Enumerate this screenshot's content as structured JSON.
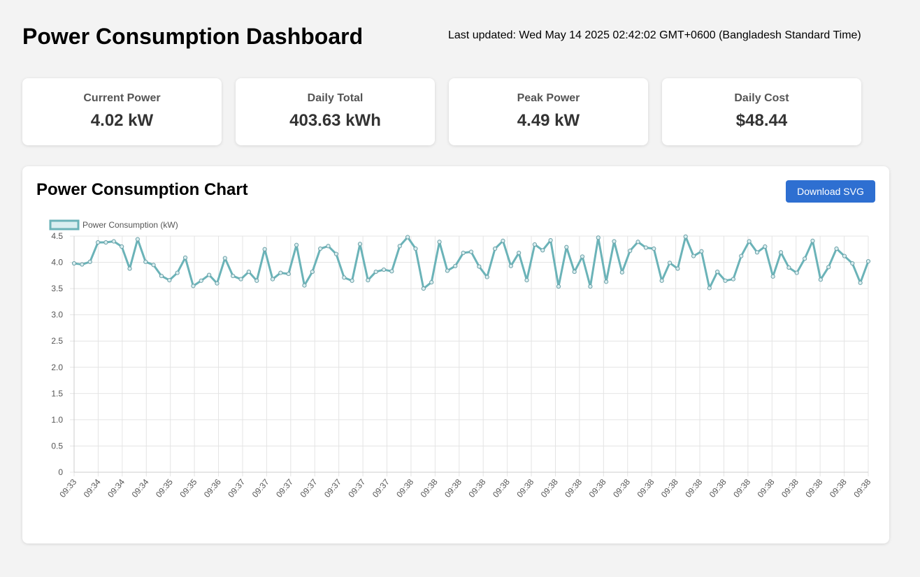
{
  "header": {
    "title": "Power Consumption Dashboard",
    "last_updated": "Last updated: Wed May 14 2025 02:42:02 GMT+0600 (Bangladesh Standard Time)"
  },
  "cards": [
    {
      "label": "Current Power",
      "value": "4.02 kW"
    },
    {
      "label": "Daily Total",
      "value": "403.63 kWh"
    },
    {
      "label": "Peak Power",
      "value": "4.49 kW"
    },
    {
      "label": "Daily Cost",
      "value": "$48.44"
    }
  ],
  "chart_panel": {
    "title": "Power Consumption Chart",
    "download_label": "Download SVG"
  },
  "colors": {
    "line": "#6bb3b8",
    "grid": "#e4e4e4",
    "button": "#2e6fd1"
  },
  "chart_data": {
    "type": "line",
    "title": "",
    "xlabel": "",
    "ylabel": "",
    "ylim": [
      0,
      4.5
    ],
    "yticks": [
      "0",
      "0.5",
      "1.0",
      "1.5",
      "2.0",
      "2.5",
      "3.0",
      "3.5",
      "4.0",
      "4.5"
    ],
    "grid": true,
    "legend": "top-left",
    "x_tick_labels": [
      "09:33",
      "09:34",
      "09:34",
      "09:34",
      "09:35",
      "09:35",
      "09:36",
      "09:37",
      "09:37",
      "09:37",
      "09:37",
      "09:37",
      "09:37",
      "09:37",
      "09:38",
      "09:38",
      "09:38",
      "09:38",
      "09:38",
      "09:38",
      "09:38",
      "09:38",
      "09:38",
      "09:38",
      "09:38",
      "09:38",
      "09:38",
      "09:38",
      "09:38",
      "09:38",
      "09:38",
      "09:38",
      "09:38",
      "09:38"
    ],
    "series": [
      {
        "name": "Power Consumption (kW)",
        "values": [
          3.98,
          3.96,
          4.01,
          4.38,
          4.38,
          4.4,
          4.3,
          3.88,
          4.44,
          4.01,
          3.95,
          3.74,
          3.66,
          3.8,
          4.09,
          3.55,
          3.65,
          3.76,
          3.6,
          4.08,
          3.74,
          3.68,
          3.82,
          3.65,
          4.25,
          3.68,
          3.8,
          3.78,
          4.33,
          3.56,
          3.82,
          4.26,
          4.31,
          4.16,
          3.71,
          3.65,
          4.35,
          3.66,
          3.82,
          3.86,
          3.83,
          4.31,
          4.48,
          4.26,
          3.5,
          3.62,
          4.39,
          3.84,
          3.93,
          4.18,
          4.2,
          3.92,
          3.72,
          4.26,
          4.41,
          3.93,
          4.18,
          3.66,
          4.34,
          4.23,
          4.42,
          3.54,
          4.29,
          3.82,
          4.11,
          3.54,
          4.47,
          3.63,
          4.4,
          3.81,
          4.22,
          4.39,
          4.28,
          4.26,
          3.65,
          3.99,
          3.88,
          4.49,
          4.12,
          4.21,
          3.51,
          3.82,
          3.65,
          3.68,
          4.12,
          4.4,
          4.19,
          4.3,
          3.73,
          4.19,
          3.9,
          3.8,
          4.07,
          4.41,
          3.67,
          3.91,
          4.26,
          4.12,
          3.98,
          3.61,
          4.02
        ]
      }
    ]
  }
}
